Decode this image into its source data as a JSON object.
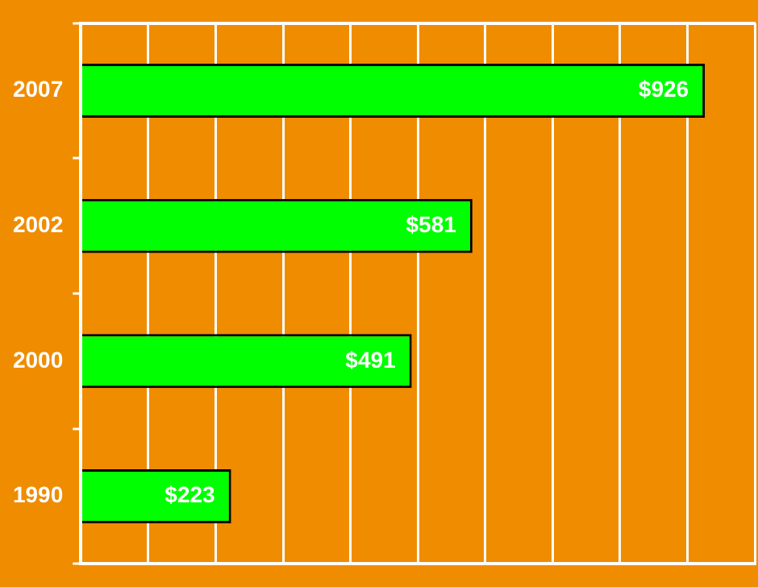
{
  "chart_data": {
    "type": "bar",
    "orientation": "horizontal",
    "categories": [
      "2007",
      "2002",
      "2000",
      "1990"
    ],
    "values": [
      926,
      581,
      491,
      223
    ],
    "value_labels": [
      "$926",
      "$581",
      "$491",
      "$223"
    ],
    "color": "#00ff00",
    "grid": "x",
    "legend": false,
    "tick_labels": "y"
  }
}
